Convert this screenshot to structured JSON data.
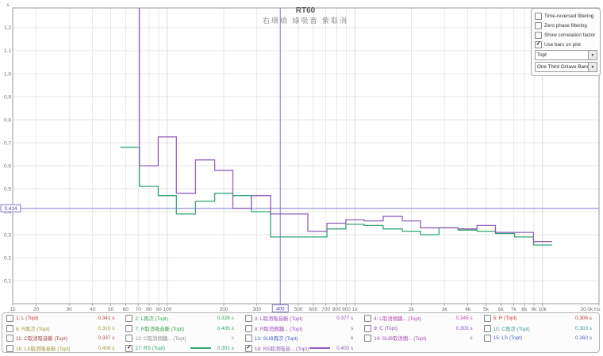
{
  "chart": {
    "title": "RT60",
    "subtitle": "右環繞 綠吸音 紫取消",
    "y_unit": "s"
  },
  "controls": {
    "checkboxes": [
      {
        "label": "Time-reversed filtering",
        "checked": false
      },
      {
        "label": "Zero phase filtering",
        "checked": false
      },
      {
        "label": "Show correlation factor",
        "checked": false
      },
      {
        "label": "Use bars on plot",
        "checked": true
      }
    ],
    "dropdowns": [
      {
        "value": "Topt"
      },
      {
        "value": "One Third Octave Bands"
      }
    ]
  },
  "chart_data": {
    "type": "line",
    "subtype": "one-third-octave step plot (RT60 vs frequency)",
    "title": "RT60",
    "subtitle": "右環繞 綠吸音 紫取消",
    "xlabel": "Hz",
    "ylabel": "s",
    "x_scale": "log",
    "x_range": [
      15,
      20000
    ],
    "y_range": [
      0,
      1.286
    ],
    "y_ticks": [
      0.1,
      0.2,
      0.3,
      0.4,
      0.5,
      0.6,
      0.7,
      0.8,
      0.9,
      1.0,
      1.1,
      1.2
    ],
    "y_tick_labels": [
      "0.1",
      "0.2",
      "0.3",
      "0.4",
      "0.5",
      "0.6",
      "0.7",
      "0.8",
      "0.9",
      "1.0",
      "1.1",
      "1.2"
    ],
    "x_tick_labels": [
      {
        "f": 15,
        "t": "15"
      },
      {
        "f": 20,
        "t": "20"
      },
      {
        "f": 30,
        "t": "30"
      },
      {
        "f": 40,
        "t": "40"
      },
      {
        "f": 50,
        "t": "50"
      },
      {
        "f": 60,
        "t": "60"
      },
      {
        "f": 70,
        "t": "70"
      },
      {
        "f": 80,
        "t": "80"
      },
      {
        "f": 90,
        "t": "90"
      },
      {
        "f": 100,
        "t": "100"
      },
      {
        "f": 200,
        "t": "200"
      },
      {
        "f": 300,
        "t": "300"
      },
      {
        "f": 500,
        "t": "500"
      },
      {
        "f": 600,
        "t": "600"
      },
      {
        "f": 700,
        "t": "700"
      },
      {
        "f": 800,
        "t": "800"
      },
      {
        "f": 900,
        "t": "900"
      },
      {
        "f": 1000,
        "t": "1k"
      },
      {
        "f": 2000,
        "t": "2k"
      },
      {
        "f": 3000,
        "t": "3k"
      },
      {
        "f": 4000,
        "t": "4k"
      },
      {
        "f": 5000,
        "t": "5k"
      },
      {
        "f": 6000,
        "t": "6k"
      },
      {
        "f": 7000,
        "t": "7k"
      },
      {
        "f": 8000,
        "t": "8k"
      },
      {
        "f": 9000,
        "t": "9k"
      },
      {
        "f": 10000,
        "t": "10k"
      },
      {
        "f": 20000,
        "t": "20.0k Hz"
      }
    ],
    "grid_freqs": [
      20,
      30,
      40,
      50,
      60,
      70,
      80,
      90,
      100,
      200,
      300,
      400,
      500,
      600,
      700,
      800,
      900,
      1000,
      2000,
      3000,
      4000,
      5000,
      6000,
      7000,
      8000,
      9000,
      10000,
      20000
    ],
    "cursor": {
      "freq": 400,
      "freq_label": "400",
      "value": 0.414,
      "value_label": "0.414"
    },
    "bands": [
      63,
      80,
      100,
      125,
      160,
      200,
      250,
      315,
      400,
      500,
      630,
      800,
      1000,
      1250,
      1600,
      2000,
      2500,
      3150,
      4000,
      5000,
      6300,
      8000,
      10000
    ],
    "series": [
      {
        "name": "17: RS (Topt)",
        "color": "#33a573",
        "values": [
          0.68,
          0.51,
          0.47,
          0.39,
          0.445,
          0.48,
          0.47,
          0.4,
          0.29,
          0.29,
          0.29,
          0.325,
          0.345,
          0.34,
          0.325,
          0.315,
          0.3,
          0.33,
          0.32,
          0.315,
          0.305,
          0.29,
          0.255
        ]
      },
      {
        "name": "18: RS取消吸音... (Topt)",
        "color": "#9161b8",
        "note": "63 Hz band exceeds plot top (clipped)",
        "values": [
          1.35,
          0.6,
          0.725,
          0.48,
          0.625,
          0.58,
          0.415,
          0.47,
          0.39,
          0.39,
          0.315,
          0.35,
          0.365,
          0.36,
          0.38,
          0.36,
          0.33,
          0.33,
          0.325,
          0.34,
          0.31,
          0.31,
          0.27
        ]
      }
    ],
    "legend_position": "bottom",
    "grid": true
  },
  "legend": {
    "items": [
      {
        "id": "1",
        "label": "1: L (Topt)",
        "value": "0.341 s",
        "color": "#c23b3b",
        "checked": false
      },
      {
        "id": "2",
        "label": "2: L再次 (Topt)",
        "value": "0.328 s",
        "color": "#3ba35c",
        "checked": false
      },
      {
        "id": "3",
        "label": "3: L取消吸音斷 (Topt)",
        "value": "0.377 s",
        "color": "#9b4fc0",
        "checked": false
      },
      {
        "id": "4",
        "label": "4: L取消側牆... (Topt)",
        "value": "0.345 s",
        "color": "#bb4bb2",
        "checked": false
      },
      {
        "id": "5",
        "label": "5: R (Topt)",
        "value": "0.306 s",
        "color": "#c23b3b",
        "checked": false
      },
      {
        "id": "6",
        "label": "6: R再次 (Topt)",
        "value": "0.310 s",
        "color": "#a39a3b",
        "checked": false
      },
      {
        "id": "7",
        "label": "7: R取消吸音斷 (Topt)",
        "value": "0.405 s",
        "color": "#3ba35c",
        "checked": false
      },
      {
        "id": "8",
        "label": "8: R取消側牆... (Topt)",
        "value": "s",
        "color": "#9b4fc0",
        "checked": false
      },
      {
        "id": "9",
        "label": "9: C (Topt)",
        "value": "0.303 s",
        "color": "#8a4fb0",
        "checked": false
      },
      {
        "id": "10",
        "label": "10: C再次 (Topt)",
        "value": "0.303 s",
        "color": "#3b9b9b",
        "checked": false
      },
      {
        "id": "11",
        "label": "11: C取消吸音斷 (Topt)",
        "value": "0.337 s",
        "color": "#a34b4b",
        "checked": false
      },
      {
        "id": "12",
        "label": "12: C取消側牆... (Topt)",
        "value": "s",
        "color": "#8f8f8f",
        "checked": false
      },
      {
        "id": "13",
        "label": "13: SUB再次 (Topt)",
        "value": "s",
        "color": "#4b62c2",
        "checked": false
      },
      {
        "id": "14",
        "label": "14: SUB取消側... (Topt)",
        "value": "s",
        "color": "#a84bb0",
        "checked": false
      },
      {
        "id": "15",
        "label": "15: LS (Topt)",
        "value": "0.260 s",
        "color": "#4b62c2",
        "checked": false
      },
      {
        "id": "16",
        "label": "16: LS取消吸音斷 (Topt)",
        "value": "0.408 s",
        "color": "#a39a3b",
        "checked": false
      },
      {
        "id": "17",
        "label": "17: RS (Topt)",
        "value": "0.301 s",
        "color": "#33a573",
        "checked": true,
        "swatch": "#33a573"
      },
      {
        "id": "18",
        "label": "18: RS取消吸音... (Topt)",
        "value": "0.400 s",
        "color": "#9161b8",
        "checked": true,
        "swatch": "#9161b8"
      }
    ]
  }
}
